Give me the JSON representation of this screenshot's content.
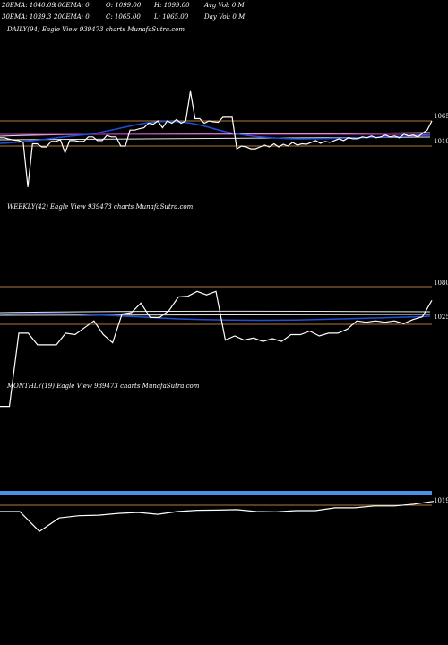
{
  "header": {
    "row1": {
      "ema20": "20EMA: 1040.09",
      "ema100": "100EMA: 0",
      "open": "O: 1099.00",
      "high": "H: 1099.00",
      "avgvol": "Avg Vol: 0  M"
    },
    "row2": {
      "ema30": "30EMA: 1039.3",
      "ema200": "200EMA: 0",
      "close": "C: 1065.00",
      "low": "L: 1065.00",
      "dayvol": "Day Vol: 0  M"
    }
  },
  "colors": {
    "background": "#000000",
    "price_line": "#ffffff",
    "ema_blue": "#1f4fd8",
    "ema_white_band": "#e8e8e8",
    "magenta_line": "#d23cc8",
    "level_line": "#b07a3a",
    "monthly_band": "#4a90e8"
  },
  "chart_data": [
    {
      "type": "line",
      "panel": "daily",
      "title": "DAILY(94) Eagle  View  939473 charts MunafaSutra.com",
      "level_labels": [
        "1065",
        "1010"
      ],
      "series": [
        {
          "values": [
            1028,
            1028,
            1025,
            1023,
            1022,
            1018,
            920,
            1015,
            1015,
            1008,
            1008,
            1020,
            1020,
            1024,
            995,
            1022,
            1022,
            1020,
            1020,
            1030,
            1030,
            1022,
            1022,
            1033,
            1030,
            1030,
            1010,
            1010,
            1045,
            1045,
            1048,
            1050,
            1060,
            1058,
            1065,
            1050,
            1065,
            1060,
            1068,
            1060,
            1065,
            1130,
            1070,
            1070,
            1060,
            1065,
            1063,
            1062,
            1073,
            1073,
            1073,
            1004,
            1010,
            1008,
            1004,
            1004,
            1008,
            1012,
            1008,
            1015,
            1008,
            1014,
            1010,
            1018,
            1012,
            1015,
            1014,
            1018,
            1022,
            1016,
            1020,
            1018,
            1022,
            1026,
            1022,
            1028,
            1026,
            1026,
            1030,
            1028,
            1032,
            1028,
            1030,
            1034,
            1030,
            1032,
            1028,
            1036,
            1032,
            1034,
            1030,
            1038,
            1045,
            1065
          ]
        }
      ]
    },
    {
      "type": "line",
      "panel": "weekly",
      "title": "WEEKLY(42) Eagle  View  939473 charts MunafaSutra.com",
      "level_labels": [
        "1080",
        "1025"
      ],
      "series": [
        {
          "values": [
            905,
            905,
            1012,
            1012,
            995,
            995,
            995,
            1012,
            1010,
            1020,
            1030,
            1010,
            998,
            1040,
            1042,
            1056,
            1035,
            1035,
            1045,
            1065,
            1066,
            1073,
            1068,
            1073,
            1002,
            1008,
            1002,
            1005,
            1000,
            1004,
            1000,
            1010,
            1010,
            1015,
            1008,
            1012,
            1012,
            1018,
            1030,
            1028,
            1030,
            1028,
            1030,
            1026,
            1032,
            1036,
            1060
          ]
        }
      ]
    },
    {
      "type": "line",
      "panel": "monthly",
      "title": "MONTHLY(19) Eagle  View  939473 charts MunafaSutra.com",
      "level_labels": [
        "1019"
      ],
      "series": [
        {
          "values": [
            985,
            985,
            877,
            950,
            962,
            965,
            975,
            980,
            970,
            985,
            992,
            993,
            995,
            985,
            983,
            990,
            990,
            1005,
            1005,
            1015,
            1015,
            1025,
            1040
          ]
        }
      ]
    }
  ]
}
